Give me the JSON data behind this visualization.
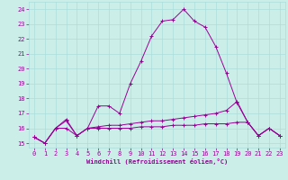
{
  "xlabel": "Windchill (Refroidissement éolien,°C)",
  "bg_color": "#cceee8",
  "grid_color": "#aaddda",
  "line_color": "#990099",
  "xlim": [
    -0.5,
    23.5
  ],
  "ylim": [
    14.7,
    24.5
  ],
  "xticks": [
    0,
    1,
    2,
    3,
    4,
    5,
    6,
    7,
    8,
    9,
    10,
    11,
    12,
    13,
    14,
    15,
    16,
    17,
    18,
    19,
    20,
    21,
    22,
    23
  ],
  "yticks": [
    15,
    16,
    17,
    18,
    19,
    20,
    21,
    22,
    23,
    24
  ],
  "line1": [
    15.4,
    15.0,
    16.0,
    16.6,
    15.5,
    16.0,
    17.5,
    17.5,
    17.0,
    19.0,
    20.5,
    22.2,
    23.2,
    23.3,
    24.0,
    23.2,
    22.8,
    21.5,
    19.7,
    17.7,
    16.4,
    15.5,
    16.0,
    15.5
  ],
  "line2": [
    15.4,
    15.0,
    16.0,
    16.5,
    15.5,
    16.0,
    16.1,
    16.2,
    16.2,
    16.3,
    16.4,
    16.5,
    16.5,
    16.6,
    16.7,
    16.8,
    16.9,
    17.0,
    17.2,
    17.8,
    16.4,
    15.5,
    16.0,
    15.5
  ],
  "line3": [
    15.4,
    15.0,
    16.0,
    16.0,
    15.5,
    16.0,
    16.0,
    16.0,
    16.0,
    16.0,
    16.1,
    16.1,
    16.1,
    16.2,
    16.2,
    16.2,
    16.3,
    16.3,
    16.3,
    16.4,
    16.4,
    15.5,
    16.0,
    15.5
  ]
}
